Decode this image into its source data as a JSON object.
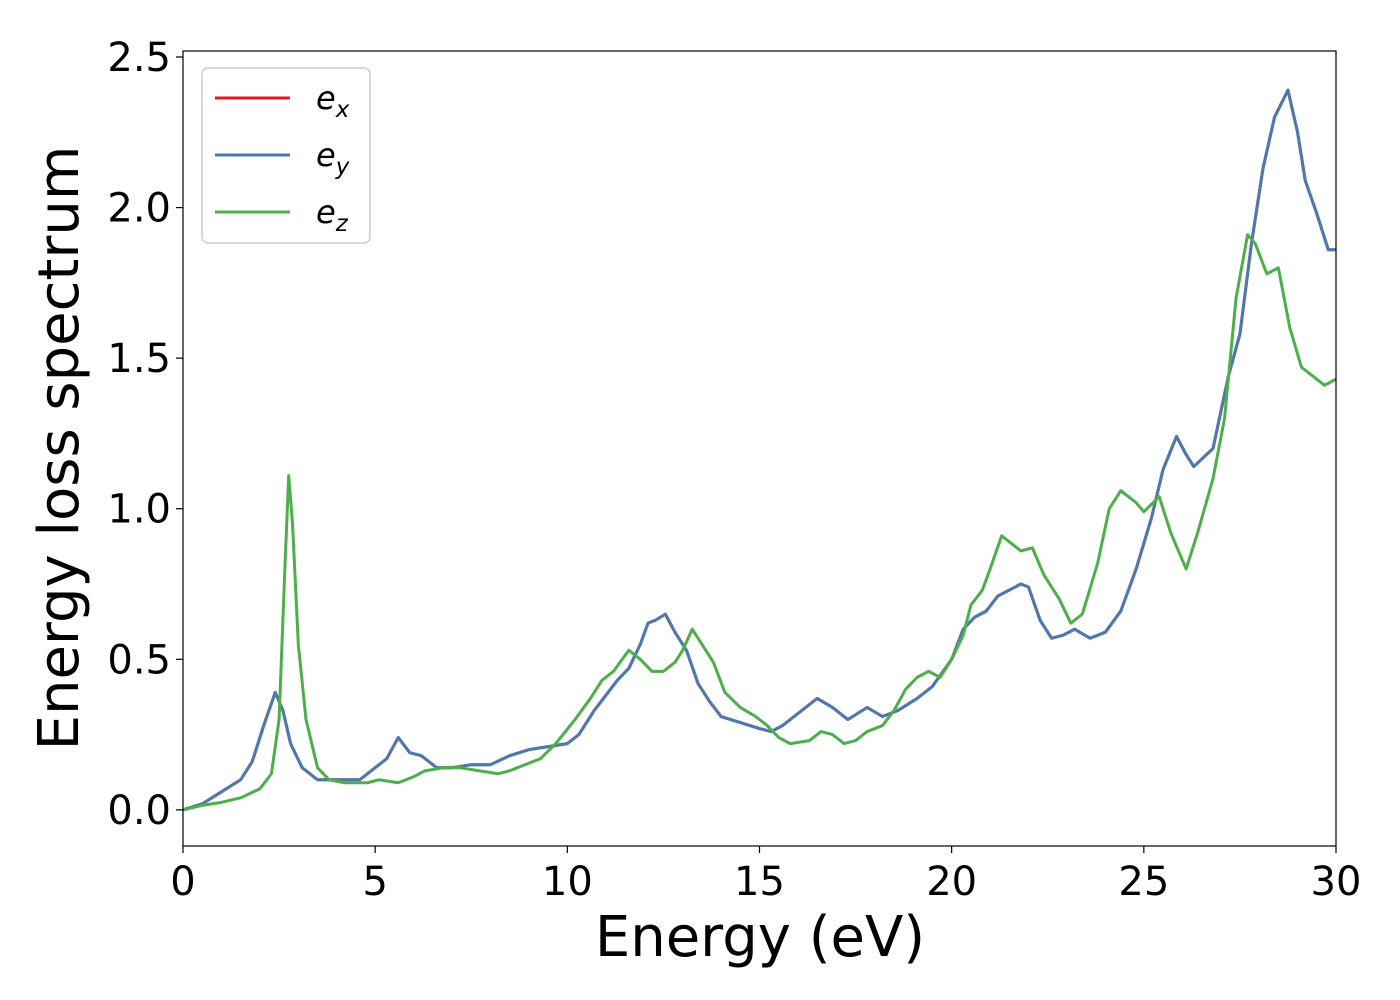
{
  "chart_data": {
    "type": "line",
    "xlabel": "Energy (eV)",
    "ylabel": "Energy loss spectrum",
    "xlim": [
      0,
      30
    ],
    "ylim": [
      -0.12,
      2.52
    ],
    "xticks": [
      "0",
      "5",
      "10",
      "15",
      "20",
      "25",
      "30"
    ],
    "yticks": [
      "0.0",
      "0.5",
      "1.0",
      "1.5",
      "2.0",
      "2.5"
    ],
    "grid": false,
    "legend_position": "top-left",
    "series": [
      {
        "name": "e",
        "subscript": "x",
        "color": "#e41a1c",
        "points": [
          [
            0,
            0
          ],
          [
            0.5,
            0.02
          ],
          [
            1,
            0.06
          ],
          [
            1.5,
            0.1
          ],
          [
            1.8,
            0.16
          ],
          [
            2.1,
            0.28
          ],
          [
            2.4,
            0.39
          ],
          [
            2.6,
            0.33
          ],
          [
            2.8,
            0.22
          ],
          [
            3.1,
            0.14
          ],
          [
            3.5,
            0.1
          ],
          [
            4,
            0.1
          ],
          [
            4.6,
            0.1
          ],
          [
            5,
            0.14
          ],
          [
            5.3,
            0.17
          ],
          [
            5.6,
            0.24
          ],
          [
            5.9,
            0.19
          ],
          [
            6.2,
            0.18
          ],
          [
            6.6,
            0.14
          ],
          [
            7,
            0.14
          ],
          [
            7.5,
            0.15
          ],
          [
            8,
            0.15
          ],
          [
            8.5,
            0.18
          ],
          [
            9,
            0.2
          ],
          [
            9.5,
            0.21
          ],
          [
            10,
            0.22
          ],
          [
            10.3,
            0.25
          ],
          [
            10.7,
            0.33
          ],
          [
            11,
            0.38
          ],
          [
            11.3,
            0.43
          ],
          [
            11.6,
            0.47
          ],
          [
            11.9,
            0.55
          ],
          [
            12.1,
            0.62
          ],
          [
            12.3,
            0.63
          ],
          [
            12.55,
            0.65
          ],
          [
            12.8,
            0.59
          ],
          [
            13.1,
            0.53
          ],
          [
            13.4,
            0.42
          ],
          [
            13.7,
            0.36
          ],
          [
            14,
            0.31
          ],
          [
            14.5,
            0.29
          ],
          [
            15,
            0.27
          ],
          [
            15.3,
            0.26
          ],
          [
            15.6,
            0.28
          ],
          [
            16,
            0.32
          ],
          [
            16.5,
            0.37
          ],
          [
            16.9,
            0.34
          ],
          [
            17.3,
            0.3
          ],
          [
            17.8,
            0.34
          ],
          [
            18.2,
            0.31
          ],
          [
            18.6,
            0.33
          ],
          [
            19.1,
            0.37
          ],
          [
            19.5,
            0.41
          ],
          [
            20,
            0.5
          ],
          [
            20.3,
            0.6
          ],
          [
            20.6,
            0.64
          ],
          [
            20.9,
            0.66
          ],
          [
            21.2,
            0.71
          ],
          [
            21.5,
            0.73
          ],
          [
            21.8,
            0.75
          ],
          [
            22,
            0.74
          ],
          [
            22.3,
            0.63
          ],
          [
            22.6,
            0.57
          ],
          [
            22.9,
            0.58
          ],
          [
            23.2,
            0.6
          ],
          [
            23.6,
            0.57
          ],
          [
            24,
            0.59
          ],
          [
            24.4,
            0.66
          ],
          [
            24.8,
            0.8
          ],
          [
            25.2,
            0.97
          ],
          [
            25.5,
            1.13
          ],
          [
            25.85,
            1.24
          ],
          [
            26.1,
            1.18
          ],
          [
            26.3,
            1.14
          ],
          [
            26.8,
            1.2
          ],
          [
            27.2,
            1.44
          ],
          [
            27.5,
            1.58
          ],
          [
            27.8,
            1.88
          ],
          [
            28.1,
            2.13
          ],
          [
            28.4,
            2.3
          ],
          [
            28.75,
            2.39
          ],
          [
            29,
            2.25
          ],
          [
            29.2,
            2.09
          ],
          [
            29.5,
            1.98
          ],
          [
            29.8,
            1.86
          ],
          [
            30,
            1.86
          ]
        ]
      },
      {
        "name": "e",
        "subscript": "y",
        "color": "#4a7ab0",
        "points": [
          [
            0,
            0
          ],
          [
            0.5,
            0.02
          ],
          [
            1,
            0.06
          ],
          [
            1.5,
            0.1
          ],
          [
            1.8,
            0.16
          ],
          [
            2.1,
            0.28
          ],
          [
            2.4,
            0.39
          ],
          [
            2.6,
            0.33
          ],
          [
            2.8,
            0.22
          ],
          [
            3.1,
            0.14
          ],
          [
            3.5,
            0.1
          ],
          [
            4,
            0.1
          ],
          [
            4.6,
            0.1
          ],
          [
            5,
            0.14
          ],
          [
            5.3,
            0.17
          ],
          [
            5.6,
            0.24
          ],
          [
            5.9,
            0.19
          ],
          [
            6.2,
            0.18
          ],
          [
            6.6,
            0.14
          ],
          [
            7,
            0.14
          ],
          [
            7.5,
            0.15
          ],
          [
            8,
            0.15
          ],
          [
            8.5,
            0.18
          ],
          [
            9,
            0.2
          ],
          [
            9.5,
            0.21
          ],
          [
            10,
            0.22
          ],
          [
            10.3,
            0.25
          ],
          [
            10.7,
            0.33
          ],
          [
            11,
            0.38
          ],
          [
            11.3,
            0.43
          ],
          [
            11.6,
            0.47
          ],
          [
            11.9,
            0.55
          ],
          [
            12.1,
            0.62
          ],
          [
            12.3,
            0.63
          ],
          [
            12.55,
            0.65
          ],
          [
            12.8,
            0.59
          ],
          [
            13.1,
            0.53
          ],
          [
            13.4,
            0.42
          ],
          [
            13.7,
            0.36
          ],
          [
            14,
            0.31
          ],
          [
            14.5,
            0.29
          ],
          [
            15,
            0.27
          ],
          [
            15.3,
            0.26
          ],
          [
            15.6,
            0.28
          ],
          [
            16,
            0.32
          ],
          [
            16.5,
            0.37
          ],
          [
            16.9,
            0.34
          ],
          [
            17.3,
            0.3
          ],
          [
            17.8,
            0.34
          ],
          [
            18.2,
            0.31
          ],
          [
            18.6,
            0.33
          ],
          [
            19.1,
            0.37
          ],
          [
            19.5,
            0.41
          ],
          [
            20,
            0.5
          ],
          [
            20.3,
            0.6
          ],
          [
            20.6,
            0.64
          ],
          [
            20.9,
            0.66
          ],
          [
            21.2,
            0.71
          ],
          [
            21.5,
            0.73
          ],
          [
            21.8,
            0.75
          ],
          [
            22,
            0.74
          ],
          [
            22.3,
            0.63
          ],
          [
            22.6,
            0.57
          ],
          [
            22.9,
            0.58
          ],
          [
            23.2,
            0.6
          ],
          [
            23.6,
            0.57
          ],
          [
            24,
            0.59
          ],
          [
            24.4,
            0.66
          ],
          [
            24.8,
            0.8
          ],
          [
            25.2,
            0.97
          ],
          [
            25.5,
            1.13
          ],
          [
            25.85,
            1.24
          ],
          [
            26.1,
            1.18
          ],
          [
            26.3,
            1.14
          ],
          [
            26.8,
            1.2
          ],
          [
            27.2,
            1.44
          ],
          [
            27.5,
            1.58
          ],
          [
            27.8,
            1.88
          ],
          [
            28.1,
            2.13
          ],
          [
            28.4,
            2.3
          ],
          [
            28.75,
            2.39
          ],
          [
            29,
            2.25
          ],
          [
            29.2,
            2.09
          ],
          [
            29.5,
            1.98
          ],
          [
            29.8,
            1.86
          ],
          [
            30,
            1.86
          ]
        ]
      },
      {
        "name": "e",
        "subscript": "z",
        "color": "#4daf4a",
        "points": [
          [
            0,
            0
          ],
          [
            0.5,
            0.015
          ],
          [
            1,
            0.025
          ],
          [
            1.5,
            0.04
          ],
          [
            2,
            0.07
          ],
          [
            2.3,
            0.12
          ],
          [
            2.5,
            0.3
          ],
          [
            2.65,
            0.8
          ],
          [
            2.75,
            1.11
          ],
          [
            2.85,
            0.95
          ],
          [
            3,
            0.55
          ],
          [
            3.2,
            0.3
          ],
          [
            3.5,
            0.14
          ],
          [
            3.8,
            0.1
          ],
          [
            4.2,
            0.09
          ],
          [
            4.8,
            0.09
          ],
          [
            5.1,
            0.1
          ],
          [
            5.6,
            0.09
          ],
          [
            6,
            0.11
          ],
          [
            6.3,
            0.13
          ],
          [
            6.8,
            0.14
          ],
          [
            7.2,
            0.14
          ],
          [
            7.7,
            0.13
          ],
          [
            8.2,
            0.12
          ],
          [
            8.5,
            0.13
          ],
          [
            8.9,
            0.15
          ],
          [
            9.3,
            0.17
          ],
          [
            9.7,
            0.22
          ],
          [
            10.2,
            0.3
          ],
          [
            10.6,
            0.37
          ],
          [
            10.9,
            0.43
          ],
          [
            11.2,
            0.46
          ],
          [
            11.6,
            0.53
          ],
          [
            11.9,
            0.5
          ],
          [
            12.2,
            0.46
          ],
          [
            12.5,
            0.46
          ],
          [
            12.8,
            0.49
          ],
          [
            13,
            0.53
          ],
          [
            13.25,
            0.6
          ],
          [
            13.5,
            0.55
          ],
          [
            13.8,
            0.49
          ],
          [
            14.1,
            0.39
          ],
          [
            14.5,
            0.34
          ],
          [
            14.9,
            0.31
          ],
          [
            15.2,
            0.28
          ],
          [
            15.5,
            0.24
          ],
          [
            15.8,
            0.22
          ],
          [
            16.3,
            0.23
          ],
          [
            16.6,
            0.26
          ],
          [
            16.9,
            0.25
          ],
          [
            17.2,
            0.22
          ],
          [
            17.5,
            0.23
          ],
          [
            17.8,
            0.26
          ],
          [
            18.2,
            0.28
          ],
          [
            18.5,
            0.33
          ],
          [
            18.8,
            0.4
          ],
          [
            19.1,
            0.44
          ],
          [
            19.4,
            0.46
          ],
          [
            19.7,
            0.44
          ],
          [
            20,
            0.5
          ],
          [
            20.3,
            0.58
          ],
          [
            20.5,
            0.68
          ],
          [
            20.8,
            0.73
          ],
          [
            21,
            0.8
          ],
          [
            21.3,
            0.91
          ],
          [
            21.6,
            0.88
          ],
          [
            21.8,
            0.86
          ],
          [
            22.1,
            0.87
          ],
          [
            22.4,
            0.78
          ],
          [
            22.8,
            0.7
          ],
          [
            23.1,
            0.62
          ],
          [
            23.4,
            0.65
          ],
          [
            23.8,
            0.82
          ],
          [
            24.1,
            1.0
          ],
          [
            24.4,
            1.06
          ],
          [
            24.8,
            1.02
          ],
          [
            25,
            0.99
          ],
          [
            25.4,
            1.04
          ],
          [
            25.7,
            0.92
          ],
          [
            26.1,
            0.8
          ],
          [
            26.4,
            0.92
          ],
          [
            26.8,
            1.1
          ],
          [
            27.1,
            1.3
          ],
          [
            27.4,
            1.7
          ],
          [
            27.7,
            1.91
          ],
          [
            27.9,
            1.88
          ],
          [
            28.2,
            1.78
          ],
          [
            28.5,
            1.8
          ],
          [
            28.8,
            1.6
          ],
          [
            29.1,
            1.47
          ],
          [
            29.4,
            1.44
          ],
          [
            29.7,
            1.41
          ],
          [
            30,
            1.43
          ]
        ]
      }
    ]
  }
}
